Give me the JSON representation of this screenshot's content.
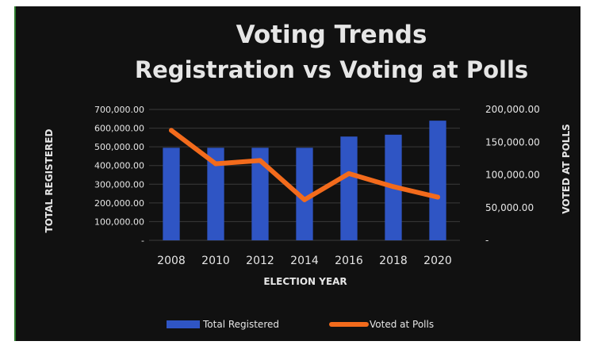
{
  "chart_data": {
    "type": "bar+line",
    "title": "Voting Trends",
    "subtitle": "Registration vs Voting at Polls",
    "xlabel": "ELECTION YEAR",
    "ylabel_left": "TOTAL REGISTERED",
    "ylabel_right": "VOTED AT POLLS",
    "categories": [
      "2008",
      "2010",
      "2012",
      "2014",
      "2016",
      "2018",
      "2020"
    ],
    "series": [
      {
        "name": "Total Registered",
        "type": "bar",
        "axis": "left",
        "color": "#2f55c4",
        "values": [
          495000,
          495000,
          495000,
          495000,
          555000,
          565000,
          640000
        ]
      },
      {
        "name": "Voted at Polls",
        "type": "line",
        "axis": "right",
        "color": "#f36b1c",
        "values": [
          168000,
          117000,
          122000,
          62000,
          102000,
          82000,
          66000
        ]
      }
    ],
    "ylim_left": [
      0,
      700000
    ],
    "ylim_right": [
      0,
      200000
    ],
    "yticks_left": [
      "-",
      "100,000.00",
      "200,000.00",
      "300,000.00",
      "400,000.00",
      "500,000.00",
      "600,000.00",
      "700,000.00"
    ],
    "yticks_right": [
      "-",
      "50,000.00",
      "100,000.00",
      "150,000.00",
      "200,000.00"
    ],
    "grid": true,
    "legend_position": "bottom",
    "background": "#111111",
    "text_color": "#e6e6e6"
  }
}
